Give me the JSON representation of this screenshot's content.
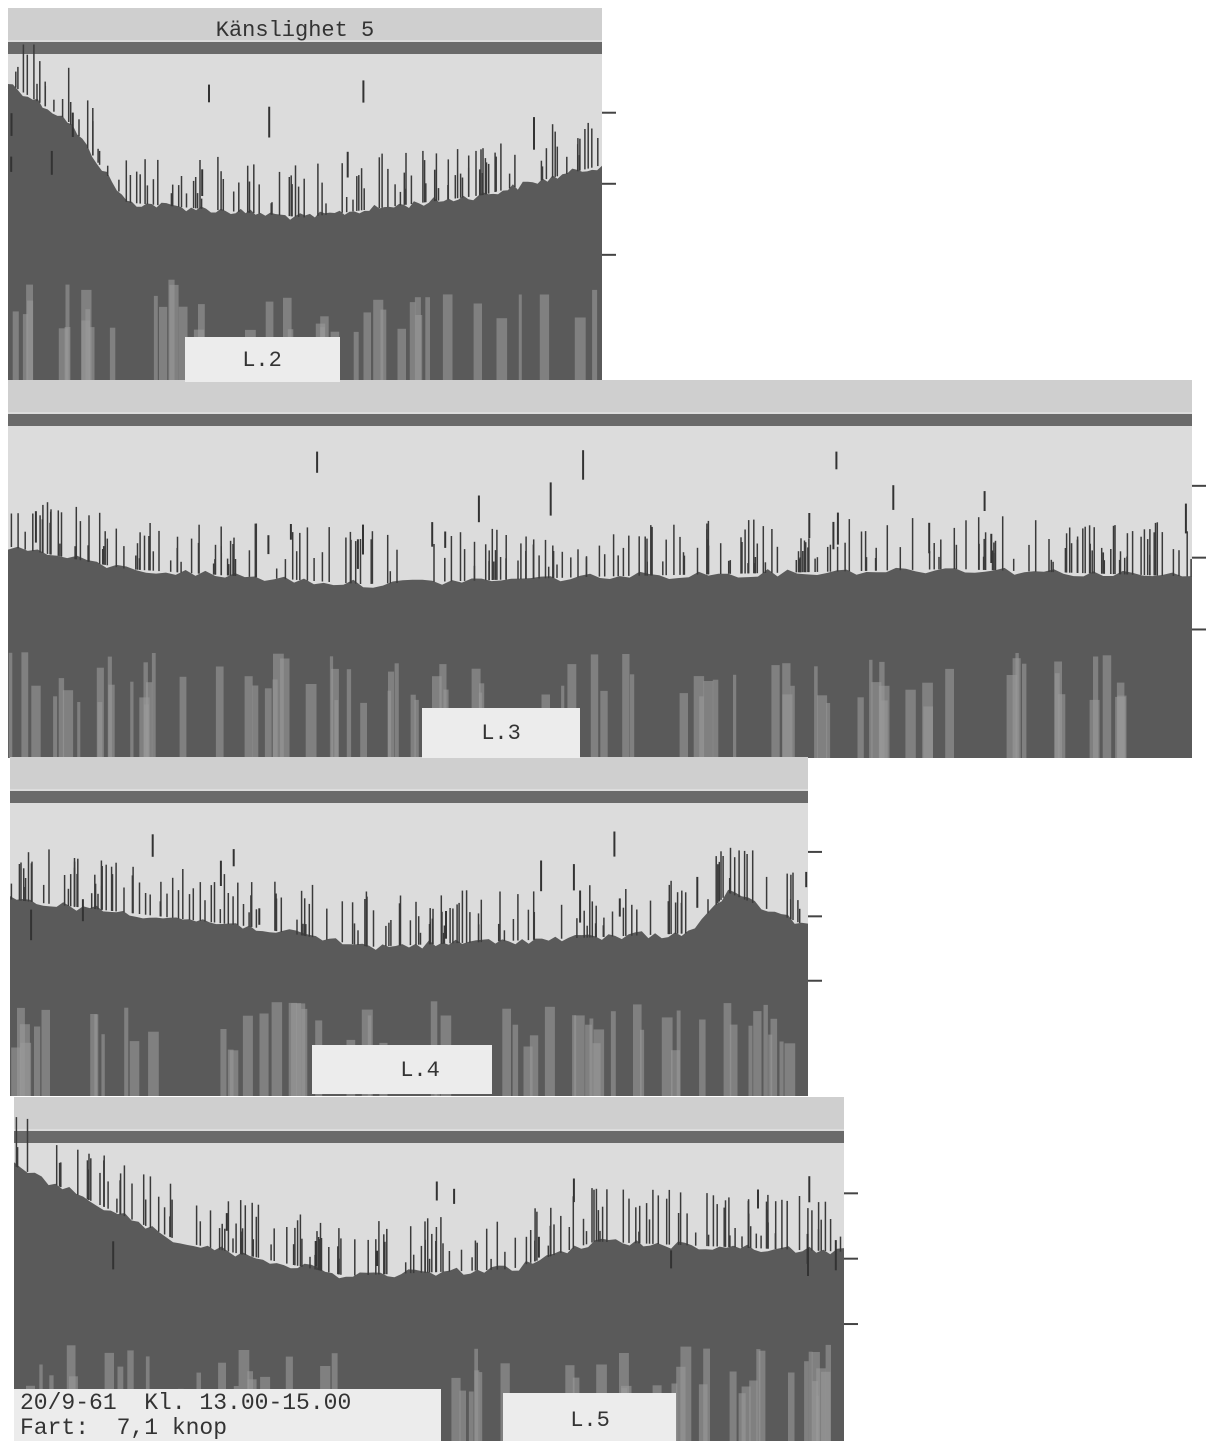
{
  "header": {
    "title": "Känslighet 5"
  },
  "strips": [
    {
      "label": "L.2"
    },
    {
      "label": "L.3"
    },
    {
      "label": "L.4"
    },
    {
      "label": "L.5"
    }
  ],
  "footer": {
    "date_time": "20/9-61  Kl. 13.00-15.00",
    "speed": "Fart:  7,1 knop"
  }
}
